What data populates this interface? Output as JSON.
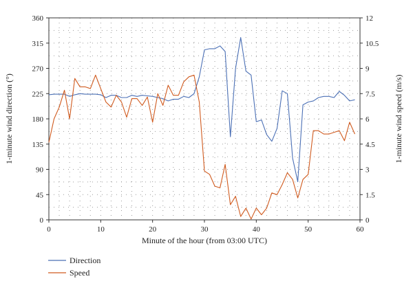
{
  "chart_data": {
    "type": "line",
    "title": "",
    "xlabel": "Minute of the hour (from 03:00 UTC)",
    "ylabel_left": "1-minute wind direction (°)",
    "ylabel_right": "1-minute wind speed (m/s)",
    "xlim": [
      0,
      60
    ],
    "ylim_left": [
      0,
      360
    ],
    "ylim_right": [
      0,
      12
    ],
    "x_ticks": [
      0,
      10,
      20,
      30,
      40,
      50,
      60
    ],
    "y_left_ticks": [
      0,
      45,
      90,
      135,
      180,
      225,
      270,
      315,
      360
    ],
    "y_right_ticks": [
      0,
      1.5,
      3,
      4.5,
      6,
      7.5,
      9,
      10.5,
      12
    ],
    "grid": "dotted",
    "legend_position": "bottom-left",
    "series": [
      {
        "name": "Direction",
        "axis": "left",
        "color": "#4a6fb5",
        "values": [
          [
            0,
            223
          ],
          [
            1,
            224
          ],
          [
            2,
            224
          ],
          [
            3,
            224
          ],
          [
            4,
            220
          ],
          [
            5,
            223
          ],
          [
            6,
            225
          ],
          [
            7,
            224
          ],
          [
            8,
            224
          ],
          [
            9,
            224
          ],
          [
            10,
            223
          ],
          [
            11,
            218
          ],
          [
            12,
            222
          ],
          [
            13,
            222
          ],
          [
            14,
            218
          ],
          [
            15,
            218
          ],
          [
            16,
            222
          ],
          [
            17,
            220
          ],
          [
            18,
            222
          ],
          [
            19,
            221
          ],
          [
            20,
            220
          ],
          [
            21,
            218
          ],
          [
            22,
            216
          ],
          [
            23,
            212
          ],
          [
            24,
            215
          ],
          [
            25,
            215
          ],
          [
            26,
            220
          ],
          [
            27,
            218
          ],
          [
            28,
            225
          ],
          [
            29,
            255
          ],
          [
            30,
            303
          ],
          [
            31,
            305
          ],
          [
            32,
            305
          ],
          [
            33,
            310
          ],
          [
            34,
            300
          ],
          [
            35,
            148
          ],
          [
            36,
            270
          ],
          [
            37,
            325
          ],
          [
            38,
            265
          ],
          [
            39,
            258
          ],
          [
            40,
            175
          ],
          [
            41,
            178
          ],
          [
            42,
            152
          ],
          [
            43,
            140
          ],
          [
            44,
            163
          ],
          [
            45,
            230
          ],
          [
            46,
            225
          ],
          [
            47,
            110
          ],
          [
            48,
            68
          ],
          [
            49,
            205
          ],
          [
            50,
            210
          ],
          [
            51,
            212
          ],
          [
            52,
            218
          ],
          [
            53,
            220
          ],
          [
            54,
            220
          ],
          [
            55,
            218
          ],
          [
            56,
            229
          ],
          [
            57,
            222
          ],
          [
            58,
            212
          ],
          [
            59,
            214
          ]
        ]
      },
      {
        "name": "Speed",
        "axis": "right",
        "color": "#d05a1e",
        "values": [
          [
            0,
            4.6
          ],
          [
            1,
            6.0
          ],
          [
            2,
            6.7
          ],
          [
            3,
            7.7
          ],
          [
            4,
            6.0
          ],
          [
            5,
            8.4
          ],
          [
            6,
            7.9
          ],
          [
            7,
            7.9
          ],
          [
            8,
            7.8
          ],
          [
            9,
            8.6
          ],
          [
            10,
            7.8
          ],
          [
            11,
            7.0
          ],
          [
            12,
            6.7
          ],
          [
            13,
            7.4
          ],
          [
            14,
            7.0
          ],
          [
            15,
            6.1
          ],
          [
            16,
            7.2
          ],
          [
            17,
            7.2
          ],
          [
            18,
            6.8
          ],
          [
            19,
            7.3
          ],
          [
            20,
            5.8
          ],
          [
            21,
            7.5
          ],
          [
            22,
            6.8
          ],
          [
            23,
            8.0
          ],
          [
            24,
            7.4
          ],
          [
            25,
            7.4
          ],
          [
            26,
            8.2
          ],
          [
            27,
            8.5
          ],
          [
            28,
            8.6
          ],
          [
            29,
            7.0
          ],
          [
            30,
            2.9
          ],
          [
            31,
            2.7
          ],
          [
            32,
            2.0
          ],
          [
            33,
            1.9
          ],
          [
            34,
            3.3
          ],
          [
            35,
            0.9
          ],
          [
            36,
            1.4
          ],
          [
            37,
            0.2
          ],
          [
            38,
            0.7
          ],
          [
            39,
            0.05
          ],
          [
            40,
            0.7
          ],
          [
            41,
            0.3
          ],
          [
            42,
            0.7
          ],
          [
            43,
            1.6
          ],
          [
            44,
            1.5
          ],
          [
            45,
            2.1
          ],
          [
            46,
            2.8
          ],
          [
            47,
            2.4
          ],
          [
            48,
            1.3
          ],
          [
            49,
            2.4
          ],
          [
            50,
            2.7
          ],
          [
            51,
            5.3
          ],
          [
            52,
            5.3
          ],
          [
            53,
            5.1
          ],
          [
            54,
            5.1
          ],
          [
            55,
            5.2
          ],
          [
            56,
            5.3
          ],
          [
            57,
            4.7
          ],
          [
            58,
            5.8
          ],
          [
            59,
            5.1
          ]
        ]
      }
    ]
  }
}
